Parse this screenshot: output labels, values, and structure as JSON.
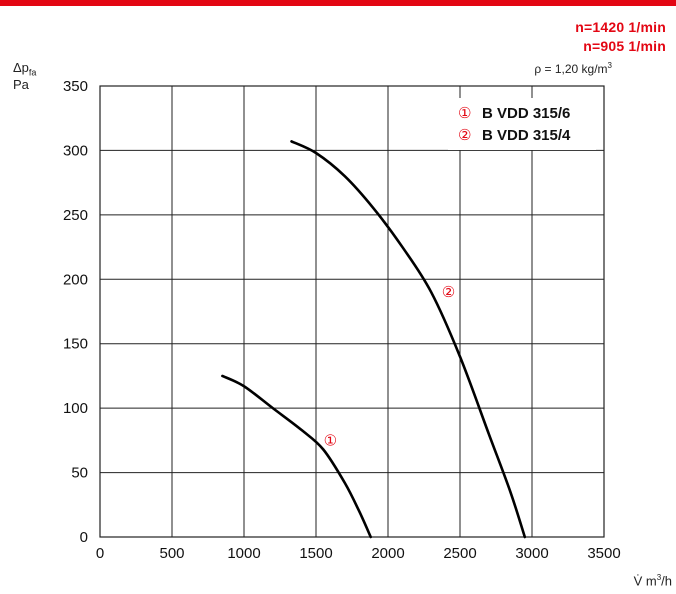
{
  "header": {
    "speed_1": "n=1420 1/min",
    "speed_2": "n=905 1/min",
    "density": "ρ = 1,20 kg/m",
    "density_exp": "3"
  },
  "axes": {
    "y_symbol": "Δp",
    "y_subscript": "fa",
    "y_unit": "Pa",
    "x_symbol": "V̇ m",
    "x_exp": "3",
    "x_unit_suffix": "/h"
  },
  "chart_data": {
    "type": "line",
    "xlim": [
      0,
      3500
    ],
    "ylim": [
      0,
      350
    ],
    "xticks": [
      0,
      500,
      1000,
      1500,
      2000,
      2500,
      3000,
      3500
    ],
    "yticks": [
      0,
      50,
      100,
      150,
      200,
      250,
      300,
      350
    ],
    "grid": true,
    "legend_position": "top-right",
    "series": [
      {
        "name": "B VDD 315/6",
        "marker": "①",
        "color": "#000000",
        "points": [
          [
            850,
            125
          ],
          [
            1000,
            117
          ],
          [
            1200,
            100
          ],
          [
            1400,
            83
          ],
          [
            1550,
            68
          ],
          [
            1700,
            42
          ],
          [
            1800,
            20
          ],
          [
            1880,
            0
          ]
        ]
      },
      {
        "name": "B VDD 315/4",
        "marker": "②",
        "color": "#000000",
        "points": [
          [
            1330,
            307
          ],
          [
            1500,
            298
          ],
          [
            1700,
            280
          ],
          [
            1900,
            255
          ],
          [
            2100,
            225
          ],
          [
            2300,
            190
          ],
          [
            2500,
            140
          ],
          [
            2700,
            80
          ],
          [
            2850,
            35
          ],
          [
            2950,
            0
          ]
        ]
      }
    ],
    "annotations": [
      {
        "text": "①",
        "x": 1600,
        "y": 75
      },
      {
        "text": "②",
        "x": 2420,
        "y": 190
      }
    ]
  }
}
